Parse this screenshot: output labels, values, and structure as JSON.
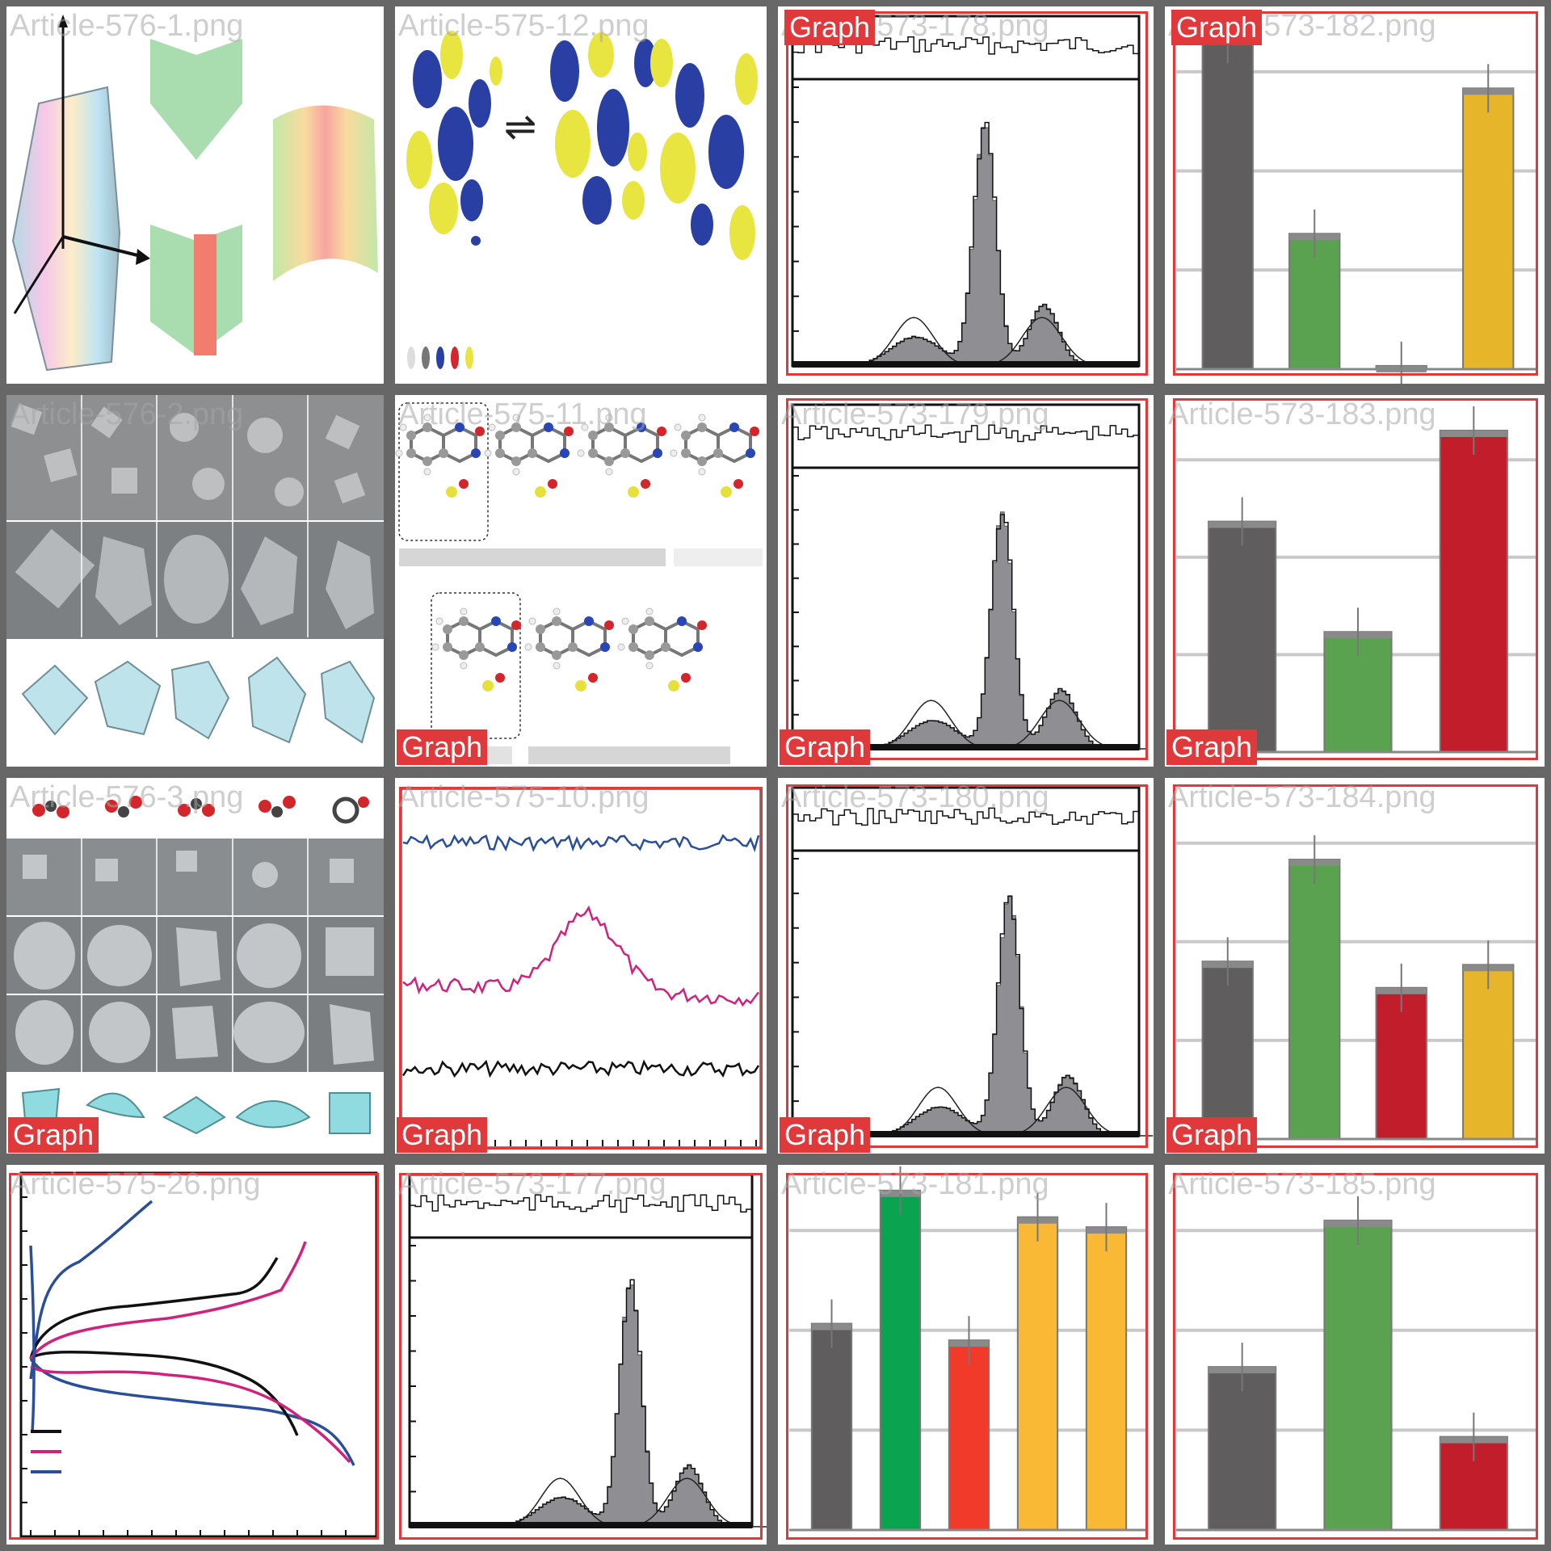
{
  "tiles": [
    {
      "filename": "Article-576-1.png"
    },
    {
      "filename": "Article-575-12.png"
    },
    {
      "filename": "Article-573-178.png"
    },
    {
      "filename": "Article-573-182.png"
    },
    {
      "filename": "Article-576-2.png"
    },
    {
      "filename": "Article-575-11.png"
    },
    {
      "filename": "Article-573-179.png"
    },
    {
      "filename": "Article-573-183.png"
    },
    {
      "filename": "Article-576-3.png"
    },
    {
      "filename": "Article-575-10.png"
    },
    {
      "filename": "Article-573-180.png"
    },
    {
      "filename": "Article-573-184.png"
    },
    {
      "filename": "Article-575-26.png"
    },
    {
      "filename": "Article-573-177.png"
    },
    {
      "filename": "Article-573-181.png"
    },
    {
      "filename": "Article-573-185.png"
    }
  ],
  "detection": {
    "label": "Graph",
    "color": "#e0393c"
  },
  "colors": {
    "bar_gray": "#5f5d5e",
    "bar_green": "#5aa24f",
    "bar_red": "#c21d2b",
    "bar_yellow": "#e7b52a",
    "bar_green_bright": "#0aa350",
    "bar_red_bright": "#f13a2a",
    "bar_yellow_bright": "#f9b935",
    "line_blue": "#2a4f9a",
    "line_magenta": "#d0227c",
    "histogram_fill": "#8f8f93"
  },
  "bar_panels": {
    "573-182": [
      1.0,
      0.41,
      0.01,
      0.85
    ],
    "573-183": [
      0.71,
      0.37,
      0.99
    ],
    "573-184": [
      0.54,
      0.85,
      0.46,
      0.53
    ],
    "573-181": [
      0.62,
      1.02,
      0.57,
      0.94,
      0.91
    ],
    "573-185": [
      0.49,
      0.93,
      0.28
    ]
  },
  "histogram_peaks": {
    "573-178": 0.55,
    "573-179": 0.6,
    "573-180": 0.62,
    "573-177": 0.64
  }
}
